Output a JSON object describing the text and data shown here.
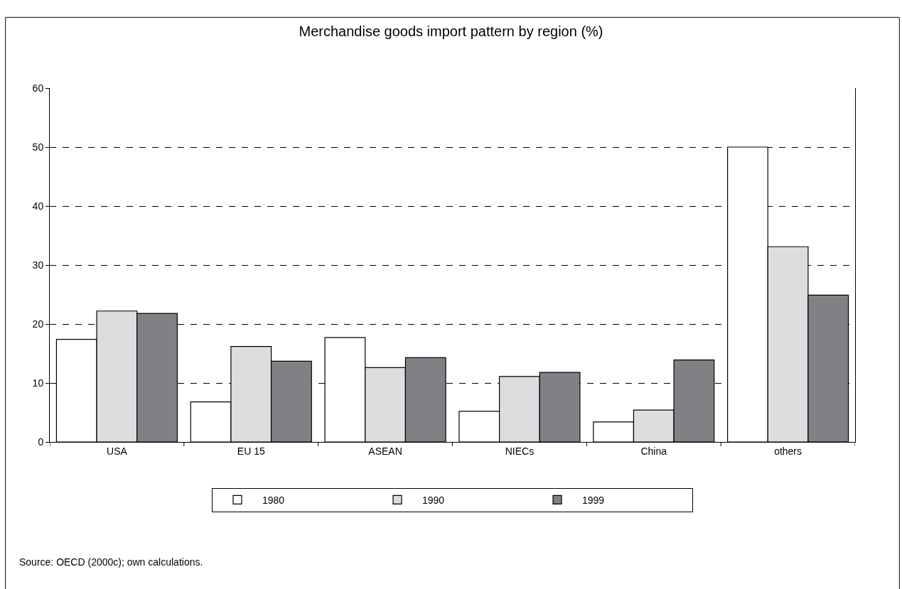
{
  "chart_data": {
    "type": "bar",
    "title": "Merchandise goods import pattern by region (%)",
    "categories": [
      "USA",
      "EU 15",
      "ASEAN",
      "NIECs",
      "China",
      "others"
    ],
    "series": [
      {
        "name": "1980",
        "color": "#ffffff",
        "values": [
          17.4,
          6.8,
          17.7,
          5.2,
          3.4,
          50.0
        ]
      },
      {
        "name": "1990",
        "color": "#dcdddf",
        "values": [
          22.2,
          16.2,
          12.6,
          11.1,
          5.4,
          33.1
        ]
      },
      {
        "name": "1999",
        "color": "#808185",
        "values": [
          21.8,
          13.7,
          14.3,
          11.8,
          13.9,
          24.9
        ]
      }
    ],
    "ylim": [
      0,
      60
    ],
    "yticks": [
      0,
      10,
      20,
      30,
      40,
      50,
      60
    ],
    "grid": "y",
    "legend": "bottom",
    "annotations": [
      "Source: OECD (2000c); own calculations."
    ]
  }
}
